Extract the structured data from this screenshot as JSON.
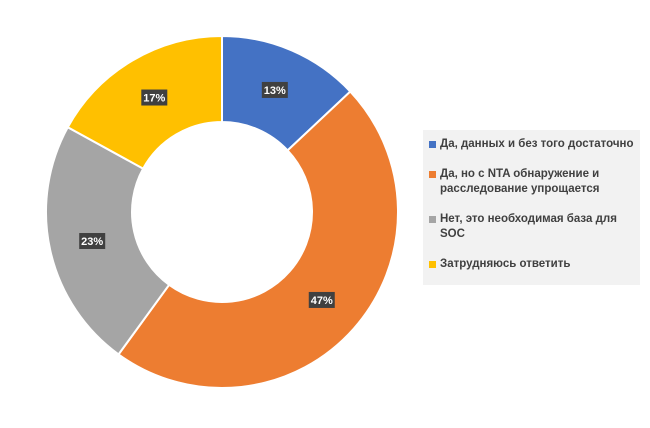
{
  "chart_data": {
    "type": "pie",
    "variant": "donut",
    "categories": [
      "Да, данных и без того достаточно",
      "Да, но с NTA обнаружение и расследование упрощается",
      "Нет, это необходимая база для SOC",
      "Затрудняюсь ответить"
    ],
    "values": [
      13,
      47,
      23,
      17
    ],
    "data_labels": [
      "13%",
      "47%",
      "23%",
      "17%"
    ],
    "colors": [
      "#4472c4",
      "#ed7d31",
      "#a5a5a5",
      "#ffc000"
    ],
    "legend_position": "right",
    "title": ""
  },
  "legend": {
    "items": [
      {
        "label": "Да, данных и без того достаточно",
        "color": "#4472c4"
      },
      {
        "label": "Да, но с NTA обнаружение и расследование упрощается",
        "color": "#ed7d31"
      },
      {
        "label": "Нет, это необходимая база для SOC",
        "color": "#a5a5a5"
      },
      {
        "label": "Затрудняюсь ответить",
        "color": "#ffc000"
      }
    ]
  }
}
